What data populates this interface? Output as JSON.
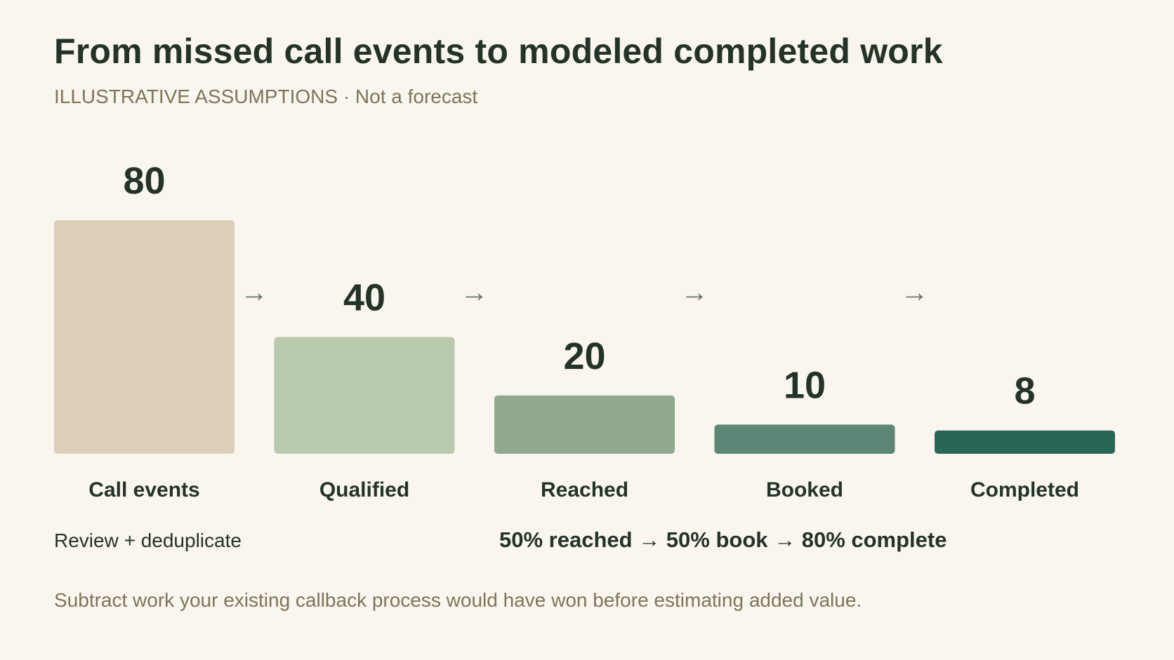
{
  "title": "From missed call events to modeled completed work",
  "subtitle": "ILLUSTRATIVE ASSUMPTIONS · Not a forecast",
  "notes": {
    "left": "Review + deduplicate",
    "rates": "50% reached → 50% book → 80% complete"
  },
  "footer": "Subtract work your existing callback process would have won before estimating added value.",
  "colors": {
    "background": "#faf6ef",
    "text": "#243328",
    "muted": "#7b7558",
    "arrow": "#6b7568"
  },
  "chart_data": {
    "type": "bar",
    "categories": [
      "Call events",
      "Qualified",
      "Reached",
      "Booked",
      "Completed"
    ],
    "values": [
      80,
      40,
      20,
      10,
      8
    ],
    "bar_colors": [
      "#dbcfb9",
      "#b8c9ad",
      "#8fa88e",
      "#5c8676",
      "#2a6657"
    ],
    "arrow_glyph": "→",
    "ylim": [
      0,
      80
    ],
    "grid": false,
    "legend": "none"
  }
}
